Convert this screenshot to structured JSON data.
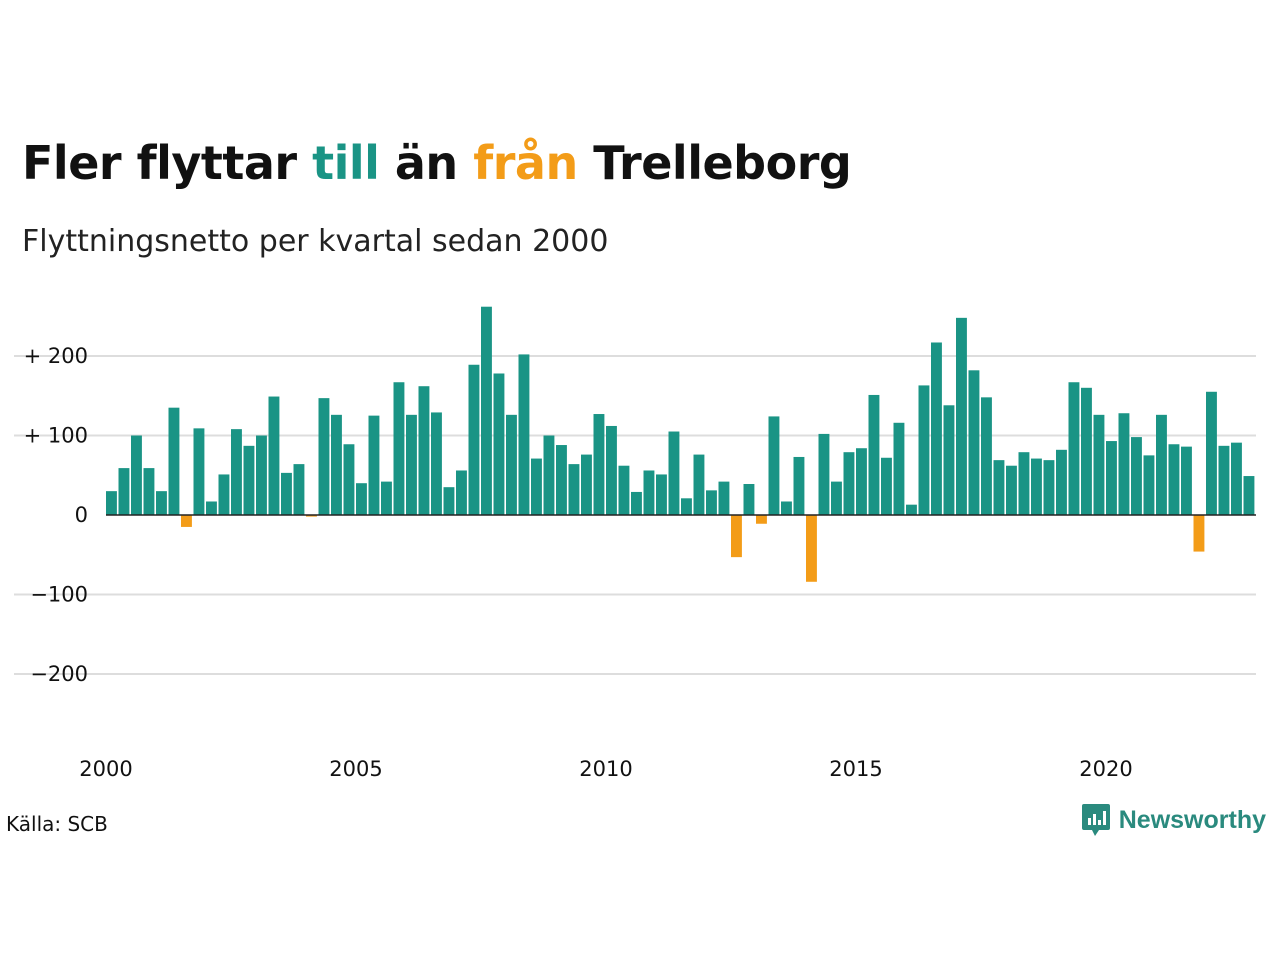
{
  "title": {
    "part1": "Fler flyttar ",
    "till": "till",
    "part2": " än ",
    "fran": "från",
    "part3": " Trelleborg"
  },
  "subtitle": "Flyttningsnetto per kvartal sedan 2000",
  "source": "Källa: SCB",
  "brand": {
    "name": "Newsworthy",
    "icon": "newsworthy-logo-icon",
    "color": "#2a8a7e"
  },
  "colors": {
    "positive": "#1a9485",
    "negative": "#f39c18",
    "grid": "#dddddd",
    "zero_line": "#222222"
  },
  "chart_data": {
    "type": "bar",
    "x_start": "2000 Q1",
    "frequency": "quarterly",
    "x_ticks": [
      "2000",
      "2005",
      "2010",
      "2015",
      "2020"
    ],
    "y_ticks": [
      {
        "value": 200,
        "label": "+ 200"
      },
      {
        "value": 100,
        "label": "+ 100"
      },
      {
        "value": 0,
        "label": "0"
      },
      {
        "value": -100,
        "label": "−100"
      },
      {
        "value": -200,
        "label": "−200"
      }
    ],
    "ylim": [
      -270,
      270
    ],
    "grid": true,
    "values": [
      30,
      59,
      100,
      59,
      30,
      135,
      -15,
      109,
      17,
      51,
      108,
      87,
      100,
      149,
      53,
      64,
      -2,
      147,
      126,
      89,
      40,
      125,
      42,
      167,
      126,
      162,
      129,
      35,
      56,
      189,
      262,
      178,
      126,
      202,
      71,
      100,
      88,
      64,
      76,
      127,
      112,
      62,
      29,
      56,
      51,
      105,
      21,
      76,
      31,
      42,
      -53,
      39,
      -11,
      124,
      17,
      73,
      -84,
      102,
      42,
      79,
      84,
      151,
      72,
      116,
      13,
      163,
      217,
      138,
      248,
      182,
      148,
      69,
      62,
      79,
      71,
      69,
      82,
      167,
      160,
      126,
      93,
      128,
      98,
      75,
      126,
      89,
      86,
      -46,
      155,
      87,
      91,
      49
    ]
  }
}
